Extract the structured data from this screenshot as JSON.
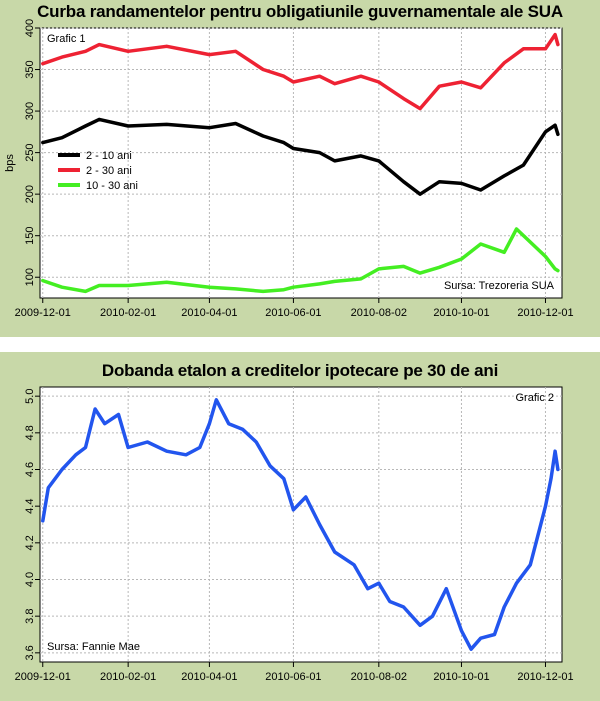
{
  "colors": {
    "background": "#c8d8a8",
    "plot_background": "#ffffff",
    "grid": "#b8b8b8",
    "series_2_10": "#000000",
    "series_2_30": "#ee2233",
    "series_10_30": "#44ee22",
    "mortgage": "#2255ee"
  },
  "chart_data": [
    {
      "type": "line",
      "title": "Curba randamentelor pentru obligatiunile guvernamentale ale SUA",
      "tag": "Grafic 1",
      "source": "Sursa: Trezoreria SUA",
      "ylabel": "bps",
      "ylim": [
        75,
        400
      ],
      "yticks": [
        100,
        150,
        200,
        250,
        300,
        350,
        400
      ],
      "xlim": [
        "2009-11-29",
        "2010-12-13"
      ],
      "xticks": [
        "2009-12-01",
        "2010-02-01",
        "2010-04-01",
        "2010-06-01",
        "2010-08-02",
        "2010-10-01",
        "2010-12-01"
      ],
      "grid": true,
      "legend_position": "left-middle",
      "series": [
        {
          "name": "2 - 10 ani",
          "color": "#000000",
          "points": [
            [
              "2009-12-01",
              262
            ],
            [
              "2009-12-15",
              268
            ],
            [
              "2010-01-01",
              282
            ],
            [
              "2010-01-11",
              290
            ],
            [
              "2010-02-01",
              282
            ],
            [
              "2010-03-01",
              284
            ],
            [
              "2010-04-01",
              280
            ],
            [
              "2010-04-20",
              285
            ],
            [
              "2010-05-10",
              270
            ],
            [
              "2010-05-25",
              262
            ],
            [
              "2010-06-01",
              255
            ],
            [
              "2010-06-20",
              250
            ],
            [
              "2010-07-01",
              240
            ],
            [
              "2010-07-20",
              246
            ],
            [
              "2010-08-02",
              240
            ],
            [
              "2010-08-20",
              215
            ],
            [
              "2010-09-01",
              200
            ],
            [
              "2010-09-15",
              215
            ],
            [
              "2010-10-01",
              213
            ],
            [
              "2010-10-15",
              205
            ],
            [
              "2010-11-01",
              222
            ],
            [
              "2010-11-15",
              235
            ],
            [
              "2010-12-01",
              275
            ],
            [
              "2010-12-08",
              283
            ],
            [
              "2010-12-10",
              272
            ]
          ]
        },
        {
          "name": "2 - 30 ani",
          "color": "#ee2233",
          "points": [
            [
              "2009-12-01",
              357
            ],
            [
              "2009-12-15",
              365
            ],
            [
              "2010-01-01",
              372
            ],
            [
              "2010-01-11",
              380
            ],
            [
              "2010-02-01",
              372
            ],
            [
              "2010-03-01",
              378
            ],
            [
              "2010-04-01",
              368
            ],
            [
              "2010-04-20",
              372
            ],
            [
              "2010-05-10",
              350
            ],
            [
              "2010-05-25",
              342
            ],
            [
              "2010-06-01",
              335
            ],
            [
              "2010-06-20",
              342
            ],
            [
              "2010-07-01",
              333
            ],
            [
              "2010-07-20",
              342
            ],
            [
              "2010-08-02",
              335
            ],
            [
              "2010-08-20",
              315
            ],
            [
              "2010-09-01",
              303
            ],
            [
              "2010-09-15",
              330
            ],
            [
              "2010-10-01",
              335
            ],
            [
              "2010-10-15",
              328
            ],
            [
              "2010-11-01",
              358
            ],
            [
              "2010-11-15",
              375
            ],
            [
              "2010-12-01",
              375
            ],
            [
              "2010-12-08",
              392
            ],
            [
              "2010-12-10",
              380
            ]
          ]
        },
        {
          "name": "10 - 30 ani",
          "color": "#44ee22",
          "points": [
            [
              "2009-12-01",
              96
            ],
            [
              "2009-12-15",
              88
            ],
            [
              "2010-01-01",
              83
            ],
            [
              "2010-01-11",
              90
            ],
            [
              "2010-02-01",
              90
            ],
            [
              "2010-03-01",
              94
            ],
            [
              "2010-04-01",
              88
            ],
            [
              "2010-04-20",
              86
            ],
            [
              "2010-05-10",
              83
            ],
            [
              "2010-05-25",
              85
            ],
            [
              "2010-06-01",
              88
            ],
            [
              "2010-06-20",
              92
            ],
            [
              "2010-07-01",
              95
            ],
            [
              "2010-07-20",
              98
            ],
            [
              "2010-08-02",
              110
            ],
            [
              "2010-08-20",
              113
            ],
            [
              "2010-09-01",
              105
            ],
            [
              "2010-09-15",
              112
            ],
            [
              "2010-10-01",
              122
            ],
            [
              "2010-10-15",
              140
            ],
            [
              "2010-11-01",
              130
            ],
            [
              "2010-11-10",
              158
            ],
            [
              "2010-12-01",
              125
            ],
            [
              "2010-12-08",
              110
            ],
            [
              "2010-12-10",
              108
            ]
          ]
        }
      ]
    },
    {
      "type": "line",
      "title": "Dobanda etalon a creditelor ipotecare pe 30 de ani",
      "tag": "Grafic 2",
      "source": "Sursa: Fannie Mae",
      "ylim": [
        3.55,
        5.05
      ],
      "yticks": [
        3.6,
        3.8,
        4.0,
        4.2,
        4.4,
        4.6,
        4.8,
        5.0
      ],
      "xlim": [
        "2009-11-29",
        "2010-12-13"
      ],
      "xticks": [
        "2009-12-01",
        "2010-02-01",
        "2010-04-01",
        "2010-06-01",
        "2010-08-02",
        "2010-10-01",
        "2010-12-01"
      ],
      "grid": true,
      "series": [
        {
          "name": "",
          "color": "#2255ee",
          "points": [
            [
              "2009-12-01",
              4.32
            ],
            [
              "2009-12-05",
              4.5
            ],
            [
              "2009-12-15",
              4.6
            ],
            [
              "2009-12-25",
              4.68
            ],
            [
              "2010-01-01",
              4.72
            ],
            [
              "2010-01-08",
              4.93
            ],
            [
              "2010-01-15",
              4.85
            ],
            [
              "2010-01-25",
              4.9
            ],
            [
              "2010-02-01",
              4.72
            ],
            [
              "2010-02-15",
              4.75
            ],
            [
              "2010-03-01",
              4.7
            ],
            [
              "2010-03-15",
              4.68
            ],
            [
              "2010-03-25",
              4.72
            ],
            [
              "2010-04-01",
              4.85
            ],
            [
              "2010-04-06",
              4.98
            ],
            [
              "2010-04-15",
              4.85
            ],
            [
              "2010-04-25",
              4.82
            ],
            [
              "2010-05-05",
              4.75
            ],
            [
              "2010-05-15",
              4.62
            ],
            [
              "2010-05-25",
              4.55
            ],
            [
              "2010-06-01",
              4.38
            ],
            [
              "2010-06-10",
              4.45
            ],
            [
              "2010-06-20",
              4.3
            ],
            [
              "2010-07-01",
              4.15
            ],
            [
              "2010-07-15",
              4.08
            ],
            [
              "2010-07-25",
              3.95
            ],
            [
              "2010-08-02",
              3.98
            ],
            [
              "2010-08-10",
              3.88
            ],
            [
              "2010-08-20",
              3.85
            ],
            [
              "2010-09-01",
              3.75
            ],
            [
              "2010-09-10",
              3.8
            ],
            [
              "2010-09-20",
              3.95
            ],
            [
              "2010-10-01",
              3.72
            ],
            [
              "2010-10-08",
              3.62
            ],
            [
              "2010-10-15",
              3.68
            ],
            [
              "2010-10-25",
              3.7
            ],
            [
              "2010-11-01",
              3.85
            ],
            [
              "2010-11-10",
              3.98
            ],
            [
              "2010-11-20",
              4.08
            ],
            [
              "2010-12-01",
              4.4
            ],
            [
              "2010-12-05",
              4.55
            ],
            [
              "2010-12-08",
              4.7
            ],
            [
              "2010-12-10",
              4.6
            ]
          ]
        }
      ]
    }
  ]
}
